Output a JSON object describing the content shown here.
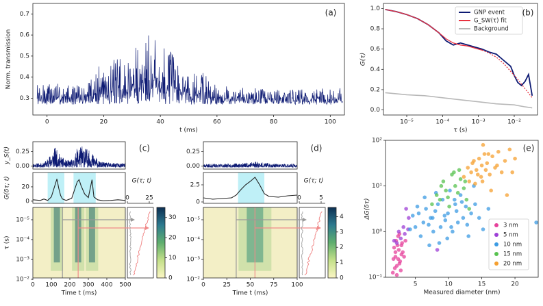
{
  "chart_data": [
    {
      "id": "a",
      "type": "line",
      "panel_label": "(a)",
      "xlabel": "t (ms)",
      "ylabel": "Norm. transmission",
      "xlim": [
        -5,
        105
      ],
      "ylim": [
        0.22,
        0.75
      ],
      "xticks": [
        0,
        20,
        40,
        60,
        80,
        100
      ],
      "yticks": [
        0.3,
        0.4,
        0.5,
        0.6,
        0.7
      ],
      "color": "#0d1a73",
      "envelope": {
        "t": [
          -3,
          5,
          12,
          16,
          18,
          20,
          22,
          25,
          28,
          31,
          33,
          35,
          36,
          38,
          40,
          42,
          45,
          48,
          52,
          56,
          60,
          70,
          80,
          90,
          104
        ],
        "upper": [
          0.37,
          0.37,
          0.37,
          0.4,
          0.47,
          0.53,
          0.46,
          0.5,
          0.45,
          0.56,
          0.6,
          0.72,
          0.65,
          0.66,
          0.6,
          0.55,
          0.52,
          0.47,
          0.45,
          0.42,
          0.36,
          0.35,
          0.35,
          0.35,
          0.35
        ],
        "lower": [
          0.27,
          0.27,
          0.27,
          0.27,
          0.27,
          0.27,
          0.27,
          0.27,
          0.27,
          0.27,
          0.27,
          0.27,
          0.27,
          0.27,
          0.27,
          0.27,
          0.27,
          0.27,
          0.27,
          0.27,
          0.27,
          0.27,
          0.27,
          0.27,
          0.27
        ]
      }
    },
    {
      "id": "b",
      "type": "line",
      "panel_label": "(b)",
      "xlabel": "τ  (s)",
      "ylabel": "G(τ)",
      "xscale": "log",
      "xlim_log10": [
        -5.65,
        -1.35
      ],
      "ylim": [
        -0.05,
        1.05
      ],
      "xticks_log10": [
        -5,
        -4,
        -3,
        -2
      ],
      "xtick_labels": [
        "10⁻⁵",
        "10⁻⁴",
        "10⁻³",
        "10⁻²"
      ],
      "yticks": [
        0.0,
        0.2,
        0.4,
        0.6,
        0.8,
        1.0
      ],
      "series": [
        {
          "name": "GNP event",
          "color": "#0d1a73",
          "log10_tau": [
            -5.6,
            -5.3,
            -5.0,
            -4.7,
            -4.4,
            -4.1,
            -3.9,
            -3.7,
            -3.5,
            -3.3,
            -3.1,
            -2.9,
            -2.7,
            -2.5,
            -2.3,
            -2.1,
            -2.0,
            -1.9,
            -1.8,
            -1.7,
            -1.6,
            -1.5
          ],
          "values": [
            0.99,
            0.97,
            0.94,
            0.9,
            0.84,
            0.76,
            0.68,
            0.64,
            0.66,
            0.64,
            0.62,
            0.6,
            0.57,
            0.55,
            0.49,
            0.43,
            0.34,
            0.27,
            0.24,
            0.28,
            0.35,
            0.14
          ]
        },
        {
          "name": "G_SW(τ) fit",
          "color": "#e8313f",
          "dashed_after_log10": -2.9,
          "log10_tau": [
            -5.6,
            -5.3,
            -5.0,
            -4.7,
            -4.4,
            -4.1,
            -3.9,
            -3.7,
            -3.5,
            -3.3,
            -3.1,
            -2.9,
            -2.7,
            -2.5,
            -2.3,
            -2.1,
            -1.9,
            -1.7,
            -1.5
          ],
          "values": [
            0.99,
            0.97,
            0.94,
            0.9,
            0.84,
            0.76,
            0.7,
            0.66,
            0.64,
            0.63,
            0.61,
            0.59,
            0.56,
            0.52,
            0.46,
            0.38,
            0.3,
            0.21,
            0.12
          ]
        },
        {
          "name": "Background",
          "color": "#b8b8b8",
          "log10_tau": [
            -5.6,
            -5.0,
            -4.5,
            -4.0,
            -3.5,
            -3.0,
            -2.5,
            -2.0,
            -1.7,
            -1.5
          ],
          "values": [
            0.17,
            0.15,
            0.14,
            0.12,
            0.1,
            0.08,
            0.06,
            0.05,
            0.03,
            0.02
          ]
        }
      ],
      "legend": [
        "GNP event",
        "G_SW(τ) fit",
        "Background"
      ],
      "legend_position": "top-right"
    },
    {
      "id": "c",
      "type": "heatmap",
      "panel_label": "(c)",
      "top_ylabel": "y_S(t)",
      "top_yticks": [
        0.0,
        0.25
      ],
      "top_ylim": [
        -0.05,
        0.42
      ],
      "top_envelope": {
        "t": [
          0,
          60,
          80,
          100,
          120,
          150,
          180,
          220,
          240,
          270,
          300,
          330,
          360,
          400,
          500
        ],
        "upper": [
          0.05,
          0.06,
          0.14,
          0.22,
          0.33,
          0.18,
          0.1,
          0.12,
          0.32,
          0.36,
          0.28,
          0.2,
          0.08,
          0.06,
          0.05
        ]
      },
      "mid_ylabel": "G(δτ; t)",
      "mid_yticks": [
        0,
        20
      ],
      "mid_ylim": [
        -3,
        40
      ],
      "mid_line": {
        "t": [
          0,
          40,
          60,
          80,
          100,
          130,
          140,
          150,
          160,
          180,
          210,
          240,
          250,
          260,
          280,
          300,
          320,
          330,
          350,
          380,
          420,
          460,
          500
        ],
        "values": [
          2,
          1,
          3,
          1,
          6,
          31,
          18,
          8,
          3,
          1,
          4,
          27,
          30,
          22,
          10,
          5,
          30,
          6,
          2,
          0.5,
          1,
          2,
          1
        ]
      },
      "mid_highlights": [
        [
          80,
          170
        ],
        [
          220,
          340
        ]
      ],
      "xlabel": "Time t (ms)",
      "xlim": [
        0,
        500
      ],
      "xticks": [
        0,
        100,
        200,
        300,
        400,
        500
      ],
      "ylabel": "τ (s)",
      "ytick_labels": [
        "10⁻⁵",
        "10⁻⁴",
        "10⁻³",
        "10⁻²"
      ],
      "bright_columns": [
        130,
        245,
        320
      ],
      "gray_line_t": 160,
      "red_line_t": 245,
      "side_xlabel": "G(τ; t)",
      "side_xticks": [
        0,
        25
      ],
      "colorbar_ticks": [
        0,
        10,
        20,
        30
      ],
      "colorbar_max": 35
    },
    {
      "id": "d",
      "type": "heatmap",
      "panel_label": "(d)",
      "top_yticks": [
        0.0,
        0.25
      ],
      "top_ylim": [
        -0.05,
        0.42
      ],
      "top_envelope": {
        "t": [
          0,
          20,
          40,
          50,
          55,
          60,
          70,
          80,
          100
        ],
        "upper": [
          0.04,
          0.04,
          0.05,
          0.07,
          0.09,
          0.07,
          0.05,
          0.04,
          0.04
        ]
      },
      "mid_yticks": [
        0.0,
        2.5
      ],
      "mid_ylim": [
        -0.2,
        4.3
      ],
      "mid_line": {
        "t": [
          0,
          10,
          20,
          30,
          35,
          40,
          45,
          50,
          55,
          60,
          65,
          70,
          80,
          90,
          100
        ],
        "values": [
          0.6,
          0.4,
          0.5,
          0.6,
          1.0,
          1.8,
          2.5,
          3.0,
          3.6,
          2.5,
          1.2,
          0.8,
          0.7,
          0.9,
          1.0
        ]
      },
      "mid_highlights": [
        [
          37,
          65
        ]
      ],
      "xlabel": "Time t (ms)",
      "xlim": [
        0,
        100
      ],
      "xticks": [
        0,
        25,
        50,
        75,
        100
      ],
      "bright_columns": [
        55
      ],
      "gray_line_t": 35,
      "red_line_t": 55,
      "side_xlabel": "G(τ; t)",
      "side_xticks": [
        0,
        5
      ],
      "colorbar_ticks": [
        0,
        1,
        2,
        3,
        4
      ],
      "colorbar_max": 4.6
    },
    {
      "id": "e",
      "type": "scatter",
      "panel_label": "(e)",
      "xlabel": "Measured diameter (nm)",
      "ylabel": "ΔG(δτ)",
      "xlim": [
        0.5,
        23.5
      ],
      "ylim_log10": [
        -1,
        2
      ],
      "xticks": [
        5,
        10,
        15,
        20
      ],
      "yticks_log10": [
        -1,
        0,
        1,
        2
      ],
      "ytick_labels": [
        "10⁻¹",
        "10⁰",
        "10¹",
        "10²"
      ],
      "legend_position": "bottom-right",
      "series": [
        {
          "name": "3 nm",
          "color": "#e6419b",
          "x": [
            1.6,
            1.9,
            2.0,
            2.2,
            2.4,
            2.5,
            2.7,
            2.9,
            3.1,
            1.8,
            2.1,
            2.3,
            2.6,
            2.8,
            3.0,
            3.3,
            2.2,
            1.7,
            2.4,
            2.9,
            3.5,
            2.0,
            2.6
          ],
          "log10_y": [
            -0.9,
            -0.8,
            -0.55,
            -0.75,
            -0.6,
            -0.4,
            -0.65,
            -0.5,
            -0.45,
            -0.35,
            -0.2,
            -0.3,
            -0.7,
            -0.85,
            -0.25,
            -0.55,
            -0.95,
            -0.6,
            -0.1,
            -0.3,
            -0.2,
            -0.45,
            -0.05
          ]
        },
        {
          "name": "5 nm",
          "color": "#9d3fd6",
          "x": [
            1.8,
            2.5,
            3.2,
            3.6,
            4.0,
            2.8,
            3.9,
            8.3,
            2.2,
            3.4
          ],
          "log10_y": [
            -0.2,
            0.0,
            0.1,
            0.5,
            0.3,
            -0.15,
            0.05,
            -0.4,
            -0.25,
            -0.05
          ]
        },
        {
          "name": "10 nm",
          "color": "#3c9be3",
          "x": [
            4.2,
            4.6,
            5.0,
            5.5,
            5.8,
            6.2,
            6.6,
            7.0,
            7.3,
            7.7,
            8.0,
            8.4,
            8.8,
            9.1,
            9.5,
            9.9,
            10.2,
            10.6,
            11.0,
            11.4,
            11.8,
            12.2,
            12.6,
            13.0,
            13.4,
            14.0,
            14.6,
            15.2,
            16.0,
            7.1,
            8.6,
            9.4,
            10.4,
            11.2,
            12.0,
            6.4,
            5.3,
            18.7,
            23.2,
            13.8,
            9.8,
            8.1,
            10.9,
            12.8,
            7.6
          ],
          "log10_y": [
            0.05,
            0.35,
            0.1,
            0.4,
            -0.1,
            0.2,
            0.5,
            0.15,
            0.3,
            0.0,
            0.45,
            0.6,
            0.1,
            0.7,
            0.25,
            0.4,
            0.9,
            0.0,
            0.6,
            0.2,
            0.8,
            0.3,
            0.55,
            -0.1,
            0.4,
            0.6,
            0.3,
            0.05,
            0.5,
            -0.3,
            -0.25,
            0.35,
            0.1,
            0.45,
            0.65,
            0.75,
            0.55,
            0.2,
            0.2,
            1.0,
            -0.15,
            0.85,
            0.7,
            0.15,
            0.3
          ]
        },
        {
          "name": "15 nm",
          "color": "#57c24f",
          "x": [
            7.5,
            8.2,
            8.7,
            9.2,
            9.6,
            10.1,
            10.5,
            11.0,
            11.4,
            11.8,
            12.3,
            12.7,
            13.1,
            10.8,
            9.9,
            11.6,
            12.5,
            8.9
          ],
          "log10_y": [
            0.6,
            0.8,
            0.7,
            1.1,
            0.9,
            0.55,
            1.25,
            1.0,
            0.85,
            1.15,
            0.95,
            0.7,
            0.5,
            1.3,
            0.75,
            1.35,
            1.1,
            1.0
          ]
        },
        {
          "name": "20 nm",
          "color": "#f5a030",
          "x": [
            12.3,
            12.9,
            13.4,
            13.8,
            14.2,
            14.6,
            15.0,
            15.4,
            15.8,
            16.2,
            16.6,
            17.0,
            17.5,
            18.0,
            18.5,
            19.2,
            20.0,
            13.1,
            14.0,
            14.9,
            15.6,
            16.4,
            17.3,
            18.8,
            15.2,
            16.0,
            14.4,
            13.6,
            15.1,
            19.6
          ],
          "log10_y": [
            1.2,
            1.4,
            1.3,
            1.55,
            1.35,
            1.6,
            1.45,
            1.7,
            1.5,
            1.25,
            1.65,
            1.4,
            1.75,
            1.3,
            1.55,
            1.8,
            1.6,
            1.1,
            1.05,
            1.2,
            1.35,
            0.9,
            1.45,
            0.8,
            1.9,
            1.7,
            1.25,
            1.5,
            1.1,
            1.3
          ]
        }
      ],
      "legend": [
        "3 nm",
        "5 nm",
        "10 nm",
        "15 nm",
        "20 nm"
      ]
    }
  ]
}
